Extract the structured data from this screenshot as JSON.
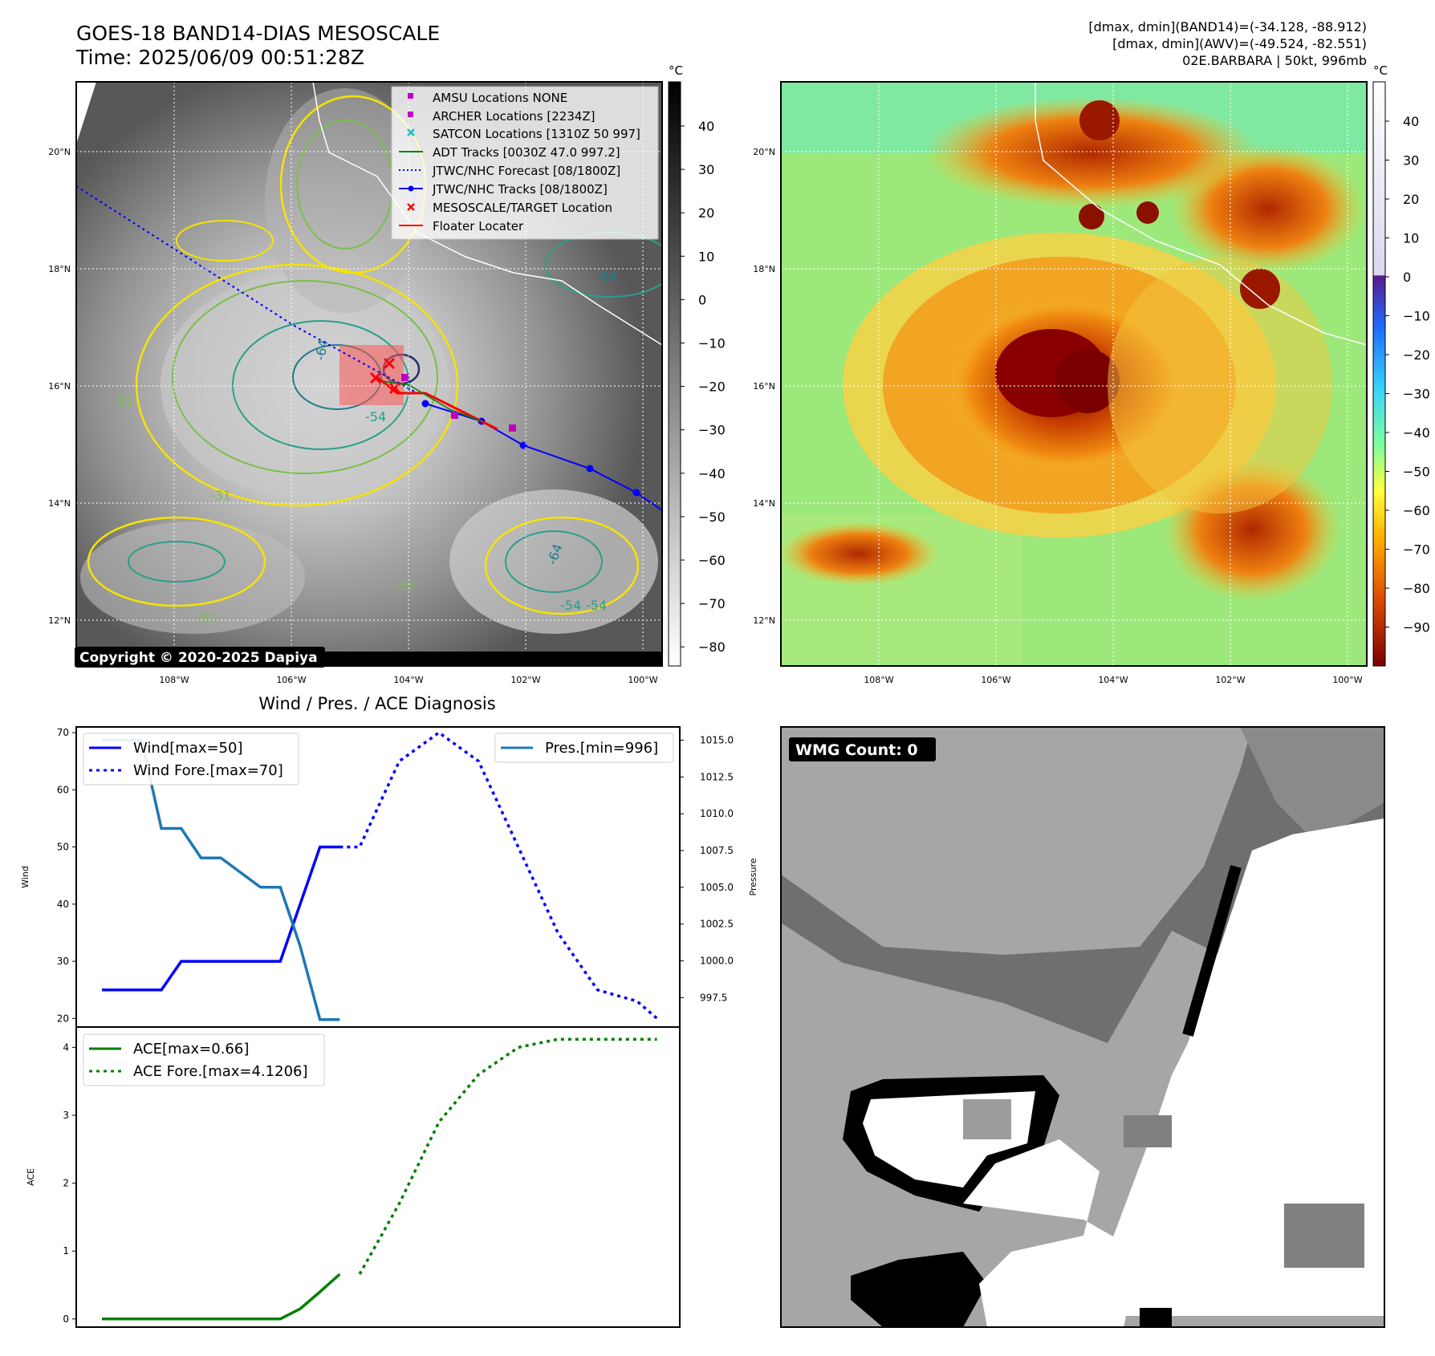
{
  "header": {
    "title_line1": "GOES-18 BAND14-DIAS MESOSCALE",
    "title_line2": "Time: 2025/06/09 00:51:28Z",
    "right_line1": "[dmax, dmin](BAND14)=(-34.128, -88.912)",
    "right_line2": "[dmax, dmin](AWV)=(-49.524, -82.551)",
    "right_line3": "02E.BARBARA | 50kt, 996mb"
  },
  "map": {
    "lat_labels": [
      "20°N",
      "18°N",
      "16°N",
      "14°N",
      "12°N"
    ],
    "lon_labels": [
      "108°W",
      "106°W",
      "104°W",
      "102°W",
      "100°W"
    ],
    "copyright": "Copyright © 2020-2025 Dapiya",
    "contour_labels": [
      "-64",
      "-54",
      "-31",
      "-64",
      "-54",
      "-31",
      "-31",
      "-64",
      "-54",
      "-31"
    ]
  },
  "legend": {
    "items": [
      {
        "label": "AMSU Locations NONE",
        "color": "#bf00bf",
        "marker": "square"
      },
      {
        "label": "ARCHER Locations [2234Z]",
        "color": "#bf00bf",
        "marker": "square"
      },
      {
        "label": "SATCON Locations [1310Z 50 997]",
        "color": "#17becf",
        "marker": "x"
      },
      {
        "label": "ADT Tracks [0030Z 47.0 997.2]",
        "color": "#008000",
        "marker": "line"
      },
      {
        "label": "JTWC/NHC Forecast [08/1800Z]",
        "color": "#0000ff",
        "marker": "dotted"
      },
      {
        "label": "JTWC/NHC Tracks [08/1800Z]",
        "color": "#0000ff",
        "marker": "line-dot"
      },
      {
        "label": "MESOSCALE/TARGET Location",
        "color": "#ff0000",
        "marker": "x"
      },
      {
        "label": "Floater Locater",
        "color": "#ff0000",
        "marker": "line"
      }
    ]
  },
  "colorbars": {
    "unit": "°C",
    "ir_ticks": [
      "40",
      "30",
      "20",
      "10",
      "0",
      "−10",
      "−20",
      "−30",
      "−40",
      "−50",
      "−60",
      "−70",
      "−80"
    ],
    "awv_ticks": [
      "40",
      "30",
      "20",
      "10",
      "0",
      "−10",
      "−20",
      "−30",
      "−40",
      "−50",
      "−60",
      "−70",
      "−80",
      "−90"
    ]
  },
  "wmg": {
    "badge": "WMG Count: 0"
  },
  "diagnosis": {
    "title": "Wind / Pres. / ACE Diagnosis",
    "wind_ylabel": "Wind",
    "pres_ylabel": "Pressure",
    "ace_ylabel": "ACE",
    "wind_ticks": [
      "70",
      "60",
      "50",
      "40",
      "30",
      "20"
    ],
    "pres_ticks": [
      "1015.0",
      "1012.5",
      "1010.0",
      "1007.5",
      "1005.0",
      "1002.5",
      "1000.0",
      "997.5"
    ],
    "ace_ticks": [
      "4",
      "3",
      "2",
      "1",
      "0"
    ],
    "legend_wind": "Wind[max=50]",
    "legend_wind_fore": "Wind Fore.[max=70]",
    "legend_pres": "Pres.[min=996]",
    "legend_ace": "ACE[max=0.66]",
    "legend_ace_fore": "ACE Fore.[max=4.1206]"
  },
  "chart_data": [
    {
      "type": "line",
      "title": "Wind / Pres. / ACE Diagnosis",
      "xlabel": "",
      "ylabel": "Wind",
      "ylim": [
        18.5,
        71
      ],
      "series": [
        {
          "name": "Wind[max=50]",
          "color": "#0000ff",
          "style": "solid",
          "x": [
            0,
            1,
            2,
            3,
            4,
            5,
            6,
            7,
            8,
            9,
            10,
            11,
            12,
            13
          ],
          "y": [
            25,
            25,
            25,
            25,
            30,
            30,
            30,
            30,
            30,
            30,
            40,
            50,
            50,
            null
          ]
        },
        {
          "name": "Wind Fore.[max=70]",
          "color": "#0000ff",
          "style": "dotted",
          "x": [
            12,
            13,
            15,
            17,
            19,
            21,
            23,
            25,
            27,
            28
          ],
          "y": [
            50,
            50,
            65,
            70,
            65,
            50,
            35,
            25,
            23,
            20
          ]
        }
      ]
    },
    {
      "type": "line",
      "ylabel": "Pressure",
      "ylim": [
        995.5,
        1015.9
      ],
      "series": [
        {
          "name": "Pres.[min=996]",
          "color": "#1f77b4",
          "style": "solid",
          "x": [
            0,
            1,
            2,
            3,
            4,
            5,
            6,
            7,
            8,
            9,
            10,
            11,
            12,
            13
          ],
          "y": [
            1015,
            1015,
            1015,
            1009,
            1009,
            1007,
            1007,
            1006,
            1005,
            1005,
            1001,
            996,
            996,
            null
          ]
        }
      ]
    },
    {
      "type": "line",
      "ylabel": "ACE",
      "ylim": [
        -0.12,
        4.3
      ],
      "series": [
        {
          "name": "ACE[max=0.66]",
          "color": "#008000",
          "style": "solid",
          "x": [
            0,
            9,
            10,
            11,
            12,
            13
          ],
          "y": [
            0,
            0,
            0.15,
            0.4,
            0.66,
            null
          ]
        },
        {
          "name": "ACE Fore.[max=4.1206]",
          "color": "#008000",
          "style": "dotted",
          "x": [
            13,
            15,
            17,
            19,
            21,
            23,
            28
          ],
          "y": [
            0.66,
            1.7,
            2.9,
            3.6,
            4.0,
            4.12,
            4.12
          ]
        }
      ]
    }
  ]
}
